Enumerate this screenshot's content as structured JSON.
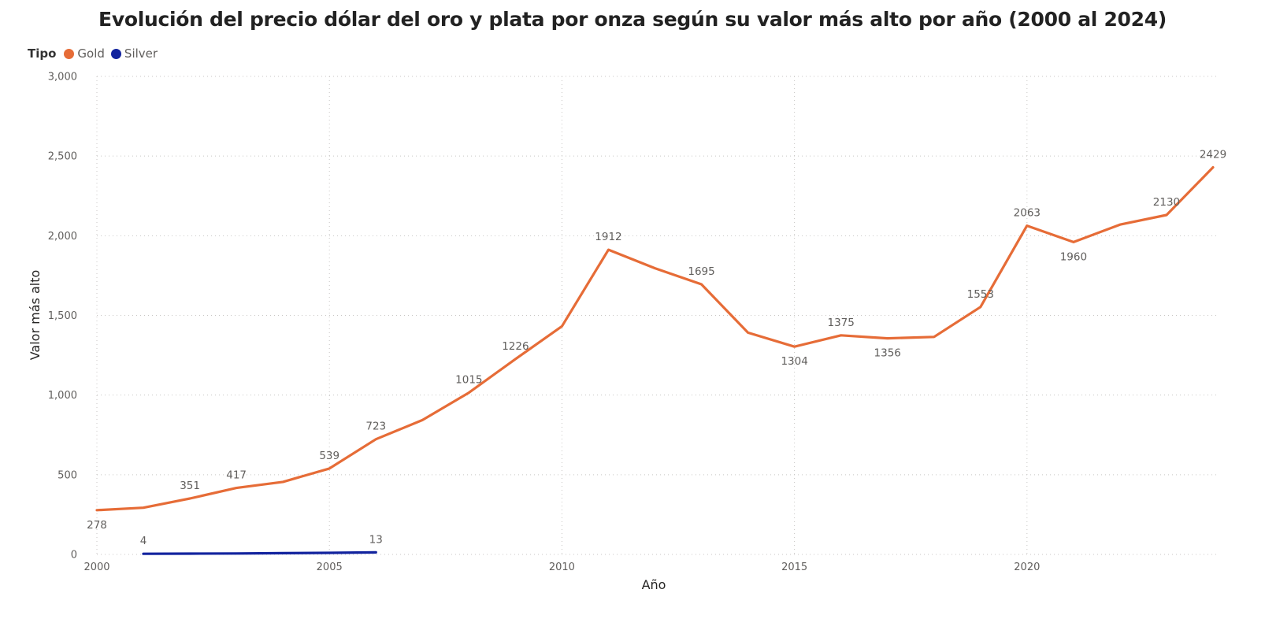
{
  "chart_data": {
    "type": "line",
    "title": "Evolución del precio dólar del oro y plata por onza según su valor más alto por año (2000 al 2024)",
    "xlabel": "Año",
    "ylabel": "Valor más alto",
    "xlim": [
      2000,
      2024
    ],
    "ylim": [
      0,
      3000
    ],
    "x_ticks": [
      "2000",
      "2005",
      "2010",
      "2015",
      "2020"
    ],
    "x_tick_values": [
      2000,
      2005,
      2010,
      2015,
      2020
    ],
    "y_ticks": [
      "0",
      "500",
      "1,000",
      "1,500",
      "2,000",
      "2,500",
      "3,000"
    ],
    "y_tick_values": [
      0,
      500,
      1000,
      1500,
      2000,
      2500,
      3000
    ],
    "grid": true,
    "legend": {
      "title": "Tipo",
      "placement": "top-left",
      "entries": [
        "Gold",
        "Silver"
      ]
    },
    "series": [
      {
        "name": "Gold",
        "color": "#e66c37",
        "x": [
          2000,
          2001,
          2002,
          2003,
          2004,
          2005,
          2006,
          2007,
          2008,
          2009,
          2010,
          2011,
          2012,
          2013,
          2014,
          2015,
          2016,
          2017,
          2018,
          2019,
          2020,
          2021,
          2022,
          2023,
          2024
        ],
        "y": [
          278,
          293,
          351,
          417,
          455,
          539,
          723,
          843,
          1015,
          1226,
          1432,
          1912,
          1796,
          1695,
          1392,
          1304,
          1375,
          1356,
          1365,
          1553,
          2063,
          1960,
          2070,
          2130,
          2429
        ],
        "labels": [
          {
            "x": 2000,
            "text": "278",
            "pos": "below"
          },
          {
            "x": 2002,
            "text": "351",
            "pos": "above"
          },
          {
            "x": 2003,
            "text": "417",
            "pos": "above"
          },
          {
            "x": 2005,
            "text": "539",
            "pos": "above"
          },
          {
            "x": 2006,
            "text": "723",
            "pos": "above"
          },
          {
            "x": 2008,
            "text": "1015",
            "pos": "above"
          },
          {
            "x": 2009,
            "text": "1226",
            "pos": "above"
          },
          {
            "x": 2011,
            "text": "1912",
            "pos": "above"
          },
          {
            "x": 2013,
            "text": "1695",
            "pos": "above"
          },
          {
            "x": 2015,
            "text": "1304",
            "pos": "below"
          },
          {
            "x": 2016,
            "text": "1375",
            "pos": "above"
          },
          {
            "x": 2017,
            "text": "1356",
            "pos": "below"
          },
          {
            "x": 2019,
            "text": "1553",
            "pos": "above"
          },
          {
            "x": 2020,
            "text": "2063",
            "pos": "above"
          },
          {
            "x": 2021,
            "text": "1960",
            "pos": "below"
          },
          {
            "x": 2023,
            "text": "2130",
            "pos": "above"
          },
          {
            "x": 2024,
            "text": "2429",
            "pos": "above"
          }
        ]
      },
      {
        "name": "Silver",
        "color": "#12239e",
        "x": [
          2001,
          2002,
          2003,
          2004,
          2005,
          2006
        ],
        "y": [
          4,
          5,
          6,
          8,
          10,
          13
        ],
        "labels": [
          {
            "x": 2001,
            "text": "4",
            "pos": "above"
          },
          {
            "x": 2006,
            "text": "13",
            "pos": "above"
          }
        ]
      }
    ]
  }
}
